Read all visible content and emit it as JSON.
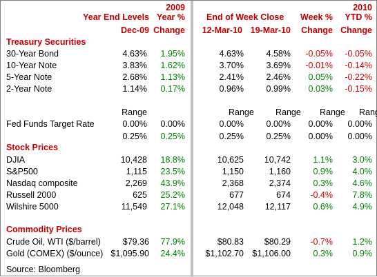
{
  "headers": {
    "year_end_levels": "Year End Levels",
    "dec09": "Dec-09",
    "year_2009": "2009",
    "year_pct": "Year %",
    "change1": "Change",
    "end_of_week_close": "End of Week Close",
    "mar12": "12-Mar-10",
    "mar19": "19-Mar-10",
    "week_pct": "Week %",
    "change2": "Change",
    "year_2010": "2010",
    "ytd_pct": "YTD %",
    "change3": "Change"
  },
  "sections": {
    "treasury": "Treasury Securities",
    "stocks": "Stock Prices",
    "commodities": "Commodity Prices"
  },
  "range_label": "Range",
  "treasury_rows": [
    {
      "name": "30-Year Bond",
      "dec09": "4.63%",
      "year_chg": "1.95%",
      "mar12": "4.63%",
      "mar19": "4.58%",
      "week": "-0.05%",
      "ytd": "-0.05%"
    },
    {
      "name": "10-Year Note",
      "dec09": "3.83%",
      "year_chg": "1.62%",
      "mar12": "3.70%",
      "mar19": "3.69%",
      "week": "-0.01%",
      "ytd": "-0.14%"
    },
    {
      "name": "5-Year Note",
      "dec09": "2.68%",
      "year_chg": "1.13%",
      "mar12": "2.41%",
      "mar19": "2.46%",
      "week": "0.05%",
      "ytd": "-0.22%"
    },
    {
      "name": "2-Year Note",
      "dec09": "1.14%",
      "year_chg": "0.17%",
      "mar12": "0.96%",
      "mar19": "0.99%",
      "week": "0.03%",
      "ytd": "-0.15%"
    }
  ],
  "fed_funds": {
    "name": "Fed Funds Target Rate",
    "row1": {
      "dec09": "0.00%",
      "year_chg": "0.00%",
      "mar12": "0.00%",
      "mar19": "0.00%",
      "week": "0.00%",
      "ytd": "0.00%"
    },
    "row2": {
      "dec09": "0.25%",
      "year_chg": "0.25%",
      "mar12": "0.25%",
      "mar19": "0.25%",
      "week": "0.00%",
      "ytd": "0.00%"
    }
  },
  "stock_rows": [
    {
      "name": "DJIA",
      "dec09": "10,428",
      "year_chg": "18.8%",
      "mar12": "10,625",
      "mar19": "10,742",
      "week": "1.1%",
      "ytd": "3.0%"
    },
    {
      "name": "S&P500",
      "dec09": "1,115",
      "year_chg": "23.5%",
      "mar12": "1,150",
      "mar19": "1,160",
      "week": "0.9%",
      "ytd": "4.0%"
    },
    {
      "name": "Nasdaq composite",
      "dec09": "2,269",
      "year_chg": "43.9%",
      "mar12": "2,368",
      "mar19": "2,374",
      "week": "0.3%",
      "ytd": "4.6%"
    },
    {
      "name": "Russell 2000",
      "dec09": "625",
      "year_chg": "25.2%",
      "mar12": "677",
      "mar19": "674",
      "week": "-0.4%",
      "ytd": "7.8%"
    },
    {
      "name": "Wilshire 5000",
      "dec09": "11,549",
      "year_chg": "27.1%",
      "mar12": "12,048",
      "mar19": "12,117",
      "week": "0.6%",
      "ytd": "4.9%"
    }
  ],
  "commodity_rows": [
    {
      "name": "Crude Oil, WTI ($/barrel)",
      "dec09": "$79.36",
      "year_chg": "77.9%",
      "mar12": "$80.83",
      "mar19": "$80.29",
      "week": "-0.7%",
      "ytd": "1.2%"
    },
    {
      "name": "Gold (COMEX) ($/ounce)",
      "dec09": "$1,095.90",
      "year_chg": "24.4%",
      "mar12": "$1,102.70",
      "mar19": "$1,106.00",
      "week": "0.3%",
      "ytd": "0.9%"
    }
  ],
  "source": "Source: Bloomberg",
  "colors": {
    "negative": "#d00000",
    "positive": "#008000",
    "header": "#c00000",
    "divider": "#c0c0c0"
  }
}
